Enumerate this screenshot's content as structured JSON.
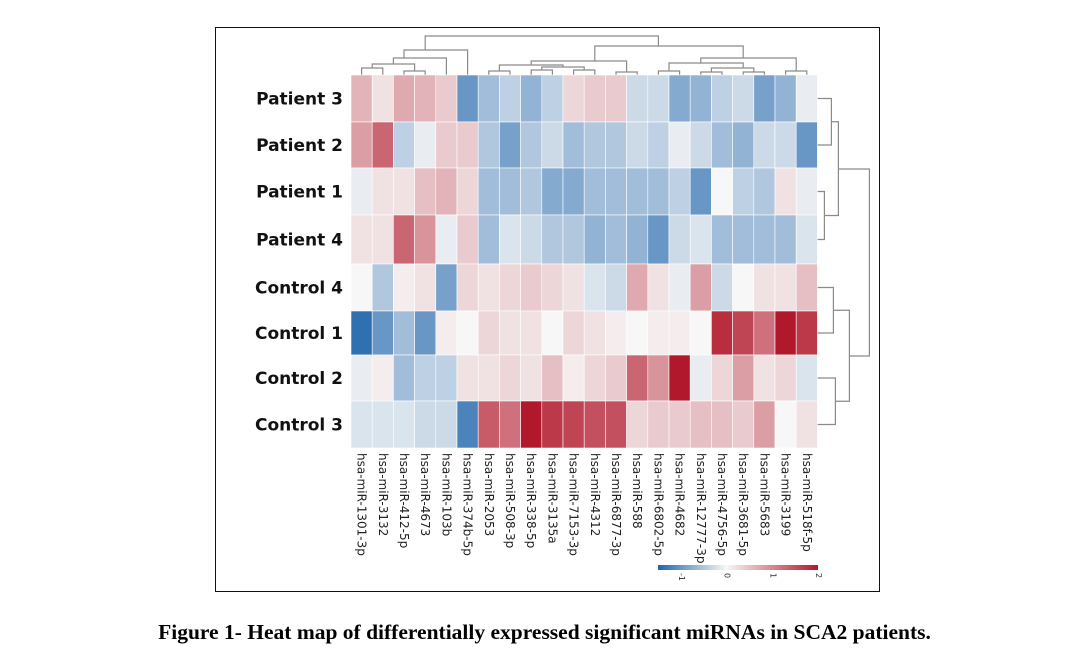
{
  "caption": "Figure 1- Heat map of differentially expressed significant miRNAs in SCA2 patients.",
  "chart_data": {
    "type": "heatmap",
    "rows": [
      "Patient 3",
      "Patient 2",
      "Patient 1",
      "Patient 4",
      "Control 4",
      "Control 1",
      "Control 2",
      "Control 3"
    ],
    "columns": [
      "hsa-miR-1301-3p",
      "hsa-miR-3132",
      "hsa-miR-412-5p",
      "hsa-miR-4673",
      "hsa-miR-103b",
      "hsa-miR-374b-5p",
      "hsa-miR-2053",
      "hsa-miR-508-3p",
      "hsa-miR-338-5p",
      "hsa-miR-3135a",
      "hsa-miR-7153-3p",
      "hsa-miR-4312",
      "hsa-miR-6877-3p",
      "hsa-miR-588",
      "hsa-miR-6802-5p",
      "hsa-miR-4682",
      "hsa-miR-12777-3p",
      "hsa-miR-4756-5p",
      "hsa-miR-3681-5p",
      "hsa-miR-5683",
      "hsa-miR-3199",
      "hsa-miR-518f-5p"
    ],
    "values": [
      [
        0.6,
        0.2,
        0.7,
        0.6,
        0.4,
        -1.0,
        -0.6,
        -0.4,
        -0.7,
        -0.4,
        0.3,
        0.4,
        0.4,
        -0.3,
        -0.3,
        -0.8,
        -0.7,
        -0.4,
        -0.3,
        -0.9,
        -0.7,
        -0.1
      ],
      [
        0.8,
        1.3,
        -0.4,
        -0.1,
        0.4,
        0.4,
        -0.5,
        -0.9,
        -0.5,
        -0.3,
        -0.6,
        -0.5,
        -0.5,
        -0.3,
        -0.4,
        -0.1,
        -0.3,
        -0.6,
        -0.7,
        -0.3,
        -0.3,
        -1.0
      ],
      [
        -0.1,
        0.2,
        0.2,
        0.5,
        0.6,
        0.3,
        -0.6,
        -0.6,
        -0.5,
        -0.8,
        -0.8,
        -0.6,
        -0.6,
        -0.6,
        -0.6,
        -0.4,
        -1.0,
        0.0,
        -0.4,
        -0.5,
        0.2,
        -0.1
      ],
      [
        0.2,
        0.2,
        1.3,
        0.9,
        -0.1,
        0.4,
        -0.6,
        -0.2,
        -0.3,
        -0.5,
        -0.5,
        -0.7,
        -0.6,
        -0.7,
        -1.0,
        -0.3,
        -0.2,
        -0.6,
        -0.6,
        -0.6,
        -0.6,
        -0.2
      ],
      [
        0.0,
        -0.5,
        0.1,
        0.2,
        -0.9,
        0.3,
        0.2,
        0.3,
        0.4,
        0.3,
        0.2,
        -0.2,
        -0.3,
        0.7,
        0.2,
        -0.1,
        0.8,
        -0.3,
        0.0,
        0.2,
        0.2,
        0.5
      ],
      [
        -1.4,
        -1.0,
        -0.6,
        -1.0,
        0.1,
        0.0,
        0.3,
        0.2,
        0.2,
        0.0,
        0.3,
        0.2,
        0.1,
        0.0,
        0.1,
        0.1,
        0.0,
        1.8,
        1.6,
        1.2,
        2.0,
        1.7
      ],
      [
        -0.1,
        0.1,
        -0.6,
        -0.4,
        -0.4,
        0.2,
        0.2,
        0.3,
        0.2,
        0.5,
        0.1,
        0.3,
        0.4,
        1.3,
        0.9,
        2.0,
        -0.1,
        0.3,
        0.8,
        0.2,
        0.3,
        -0.2
      ],
      [
        -0.2,
        -0.2,
        -0.2,
        -0.3,
        -0.3,
        -1.2,
        1.4,
        1.2,
        2.0,
        1.7,
        1.6,
        1.5,
        1.5,
        0.3,
        0.4,
        0.4,
        0.5,
        0.5,
        0.4,
        0.8,
        0.0,
        0.2
      ]
    ],
    "color_scale": {
      "min": -1.5,
      "mid": 0,
      "max": 2,
      "low_color": "#2166ac",
      "mid_color": "#f7f7f7",
      "high_color": "#b2182b"
    },
    "colorbar_ticks": [
      "-1",
      "0",
      "1",
      "2"
    ],
    "colorbar_tick_values": [
      -1,
      0,
      1,
      2
    ],
    "dendrograms": "row and column hierarchical clustering"
  }
}
